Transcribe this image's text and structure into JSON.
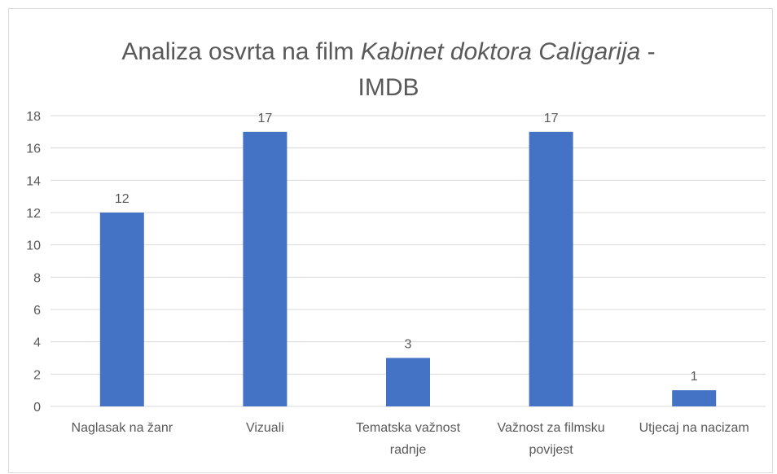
{
  "chart_data": {
    "type": "bar",
    "title": [
      "Analiza osvrta na film",
      "Kabinet doktora Caligarija",
      "-",
      "IMDB"
    ],
    "categories": [
      "Naglasak na žanr",
      "Vizuali",
      "Tematska važnost radnje",
      "Važnost za filmsku povijest",
      "Utjecaj na nacizam"
    ],
    "values": [
      12,
      17,
      3,
      17,
      1
    ],
    "color": "#4472c4",
    "ylim": [
      0,
      18
    ],
    "yticks": [
      0,
      2,
      4,
      6,
      8,
      10,
      12,
      14,
      16,
      18
    ],
    "grid": true
  }
}
